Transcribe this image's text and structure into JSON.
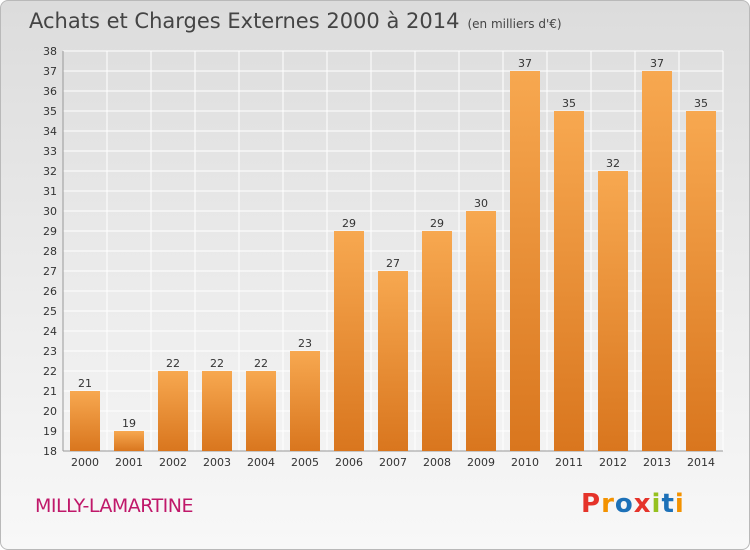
{
  "header": {
    "title": "Achats et Charges Externes 2000 à 2014",
    "subtitle": "(en milliers d'€)"
  },
  "footer": {
    "commune": "MILLY-LAMARTINE",
    "logo_text": "Proxiti"
  },
  "colors": {
    "bar_light": "#f7a850",
    "bar_dark": "#d9761e",
    "commune": "#c0186a",
    "logo_letters": [
      "#e5332a",
      "#f39200",
      "#1d71b8",
      "#e5332a",
      "#95c11f",
      "#1d71b8",
      "#f39200"
    ]
  },
  "chart_data": {
    "type": "bar",
    "title": "Achats et Charges Externes 2000 à 2014",
    "subtitle": "(en milliers d'€)",
    "xlabel": "",
    "ylabel": "",
    "categories": [
      "2000",
      "2001",
      "2002",
      "2003",
      "2004",
      "2005",
      "2006",
      "2007",
      "2008",
      "2009",
      "2010",
      "2011",
      "2012",
      "2013",
      "2014"
    ],
    "values": [
      21,
      19,
      22,
      22,
      22,
      23,
      29,
      27,
      29,
      30,
      37,
      35,
      32,
      37,
      35
    ],
    "ylim": [
      18,
      38
    ],
    "yticks": [
      18,
      19,
      20,
      21,
      22,
      23,
      24,
      25,
      26,
      27,
      28,
      29,
      30,
      31,
      32,
      33,
      34,
      35,
      36,
      37,
      38
    ],
    "grid": true,
    "legend": "none"
  }
}
